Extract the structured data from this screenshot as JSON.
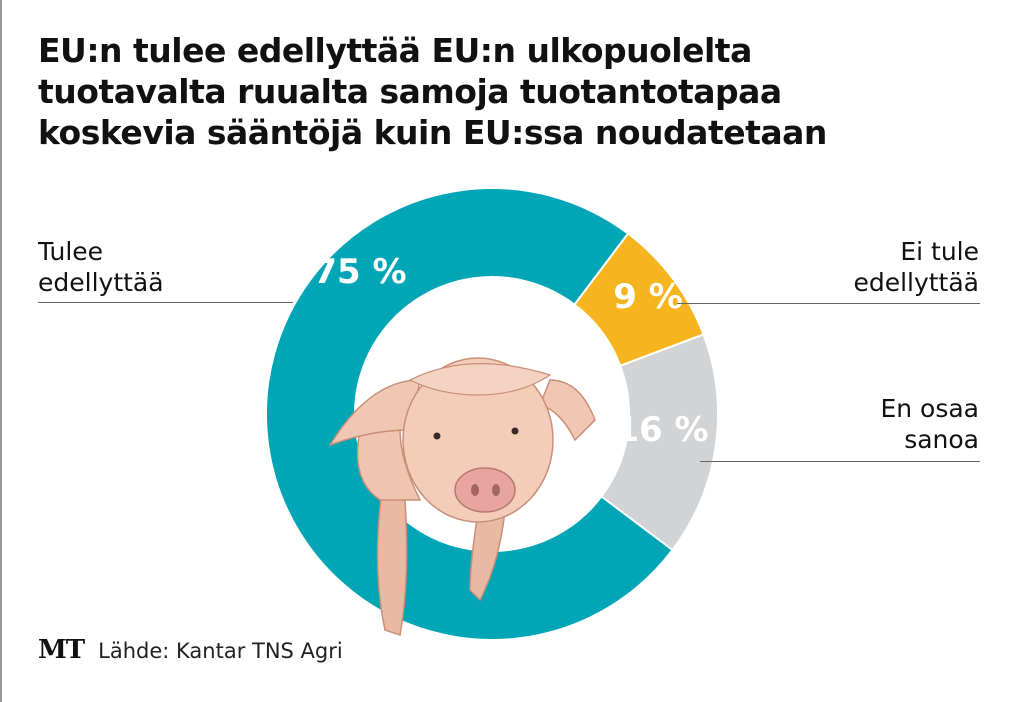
{
  "title_lines": [
    "EU:n tulee edellyttää EU:n ulkopuolelta",
    "tuotavalta ruualta samoja tuotantotapaa",
    "koskevia sääntöjä kuin EU:ssa noudatetaan"
  ],
  "chart_data": {
    "type": "pie",
    "variant": "donut",
    "title": "EU:n tulee edellyttää EU:n ulkopuolelta tuotavalta ruualta samoja tuotantotapaa koskevia sääntöjä kuin EU:ssa noudatetaan",
    "slices": [
      {
        "label_lines": [
          "Ei tule",
          "edellyttää"
        ],
        "value": 9,
        "display": "9 %",
        "color": "#f6b51e"
      },
      {
        "label_lines": [
          "En osaa",
          "sanoa"
        ],
        "value": 16,
        "display": "16 %",
        "color": "#d2d3d5"
      },
      {
        "label_lines": [
          "Tulee",
          "edellyttää"
        ],
        "value": 75,
        "display": "75 %",
        "color": "#00a5b6"
      }
    ],
    "unit": "%"
  },
  "footer": {
    "logo": "MT",
    "source": "Lähde: Kantar TNS Agri"
  }
}
